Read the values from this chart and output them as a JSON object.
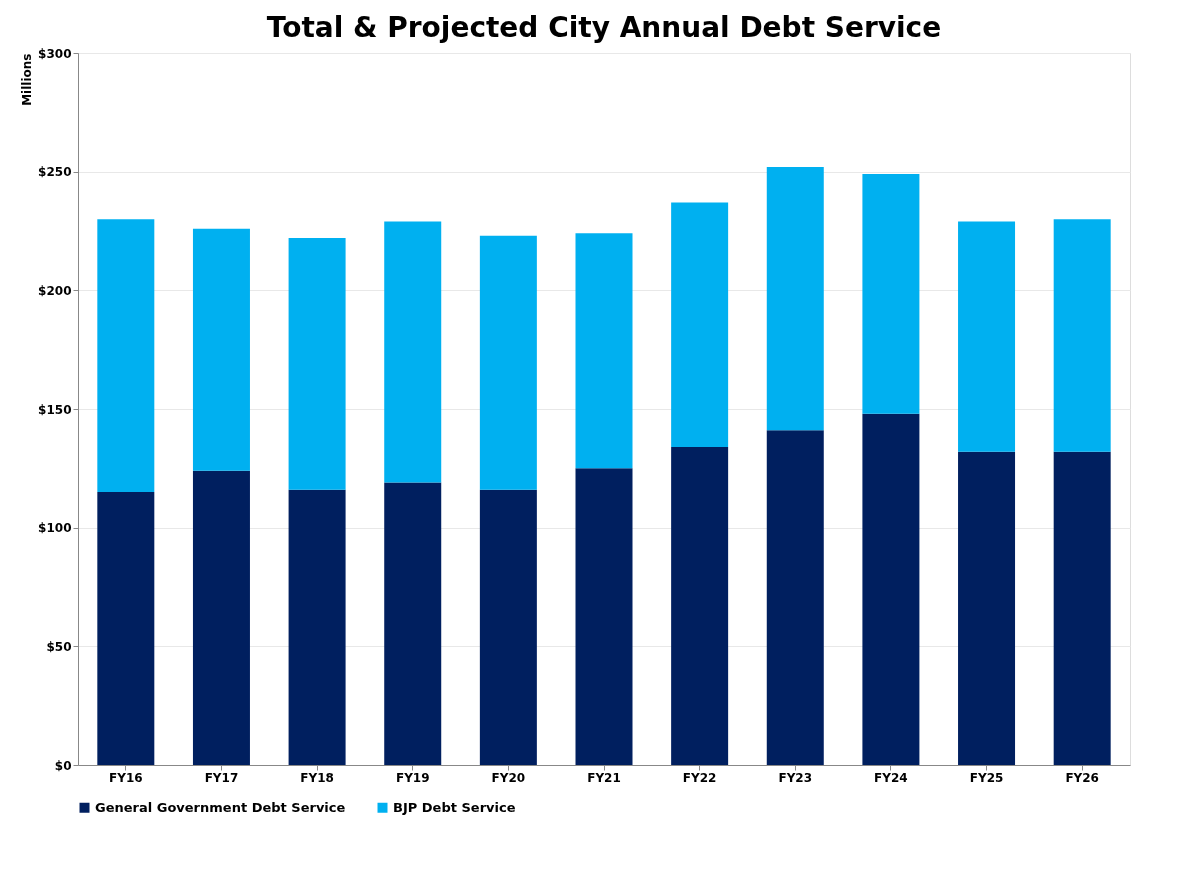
{
  "chart_data": {
    "type": "bar",
    "stacked": true,
    "title": "Total & Projected City Annual Debt Service",
    "ylabel": "Millions",
    "categories": [
      "FY16",
      "FY17",
      "FY18",
      "FY19",
      "FY20",
      "FY21",
      "FY22",
      "FY23",
      "FY24",
      "FY25",
      "FY26"
    ],
    "series": [
      {
        "name": "General Government Debt Service",
        "color": "#001f5f",
        "values": [
          115,
          124,
          116,
          119,
          116,
          125,
          134,
          141,
          148,
          132,
          132
        ]
      },
      {
        "name": "BJP Debt Service",
        "color": "#00b0f0",
        "values": [
          115,
          102,
          106,
          110,
          107,
          99,
          103,
          111,
          101,
          97,
          98
        ]
      }
    ],
    "ylim": [
      0,
      300
    ],
    "yticks": [
      {
        "value": 0,
        "label": "$0"
      },
      {
        "value": 50,
        "label": "$50"
      },
      {
        "value": 100,
        "label": "$100"
      },
      {
        "value": 150,
        "label": "$150"
      },
      {
        "value": 200,
        "label": "$200"
      },
      {
        "value": 250,
        "label": "$250"
      },
      {
        "value": 300,
        "label": "$300"
      }
    ],
    "grid": "y",
    "legend": "bottom"
  }
}
